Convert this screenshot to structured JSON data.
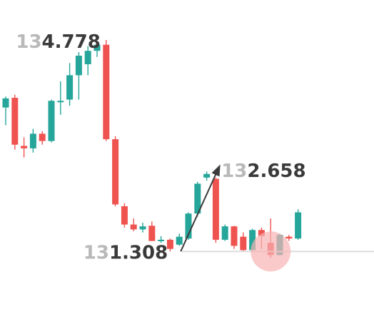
{
  "colors": {
    "bull": "#26a69a",
    "bear": "#ef5350",
    "annotation": "#3b3b3b",
    "marker": "#f8b4b4",
    "baseline": "#dcdcdc",
    "label_dim": "#b9b9b9",
    "label_strong": "#3a3a3a"
  },
  "labels": {
    "high": {
      "dim": "13",
      "strong": "4.778"
    },
    "mid": {
      "dim": "13",
      "strong": "2.658"
    },
    "low": {
      "dim": "13",
      "strong": "1.308"
    }
  },
  "chart_data": {
    "type": "candlestick",
    "ylim": [
      130.75,
      135.2
    ],
    "candles": [
      {
        "o": 133.67,
        "h": 133.85,
        "l": 133.38,
        "c": 133.82
      },
      {
        "o": 133.83,
        "h": 133.88,
        "l": 132.98,
        "c": 133.06
      },
      {
        "o": 133.04,
        "h": 133.18,
        "l": 132.85,
        "c": 133.0
      },
      {
        "o": 133.0,
        "h": 133.32,
        "l": 132.93,
        "c": 133.24
      },
      {
        "o": 133.24,
        "h": 133.28,
        "l": 133.06,
        "c": 133.12
      },
      {
        "o": 133.12,
        "h": 133.8,
        "l": 133.1,
        "c": 133.78
      },
      {
        "o": 133.78,
        "h": 134.1,
        "l": 133.55,
        "c": 133.78
      },
      {
        "o": 133.8,
        "h": 134.4,
        "l": 133.7,
        "c": 134.2
      },
      {
        "o": 134.2,
        "h": 134.58,
        "l": 133.8,
        "c": 134.52
      },
      {
        "o": 134.38,
        "h": 134.68,
        "l": 134.2,
        "c": 134.6
      },
      {
        "o": 134.6,
        "h": 134.75,
        "l": 134.5,
        "c": 134.7
      },
      {
        "o": 134.7,
        "h": 134.778,
        "l": 133.12,
        "c": 133.15
      },
      {
        "o": 133.15,
        "h": 133.2,
        "l": 132.05,
        "c": 132.08
      },
      {
        "o": 132.05,
        "h": 132.1,
        "l": 131.7,
        "c": 131.75
      },
      {
        "o": 131.75,
        "h": 131.85,
        "l": 131.64,
        "c": 131.67
      },
      {
        "o": 131.67,
        "h": 131.78,
        "l": 131.62,
        "c": 131.72
      },
      {
        "o": 131.73,
        "h": 131.8,
        "l": 131.48,
        "c": 131.48
      },
      {
        "o": 131.48,
        "h": 131.56,
        "l": 131.45,
        "c": 131.5
      },
      {
        "o": 131.5,
        "h": 131.52,
        "l": 131.308,
        "c": 131.35
      },
      {
        "o": 131.42,
        "h": 131.6,
        "l": 131.4,
        "c": 131.55
      },
      {
        "o": 131.52,
        "h": 131.95,
        "l": 131.5,
        "c": 131.93
      },
      {
        "o": 131.93,
        "h": 132.45,
        "l": 131.88,
        "c": 132.42
      },
      {
        "o": 132.52,
        "h": 132.62,
        "l": 132.47,
        "c": 132.58
      },
      {
        "o": 132.5,
        "h": 132.52,
        "l": 131.45,
        "c": 131.5
      },
      {
        "o": 131.5,
        "h": 131.75,
        "l": 131.48,
        "c": 131.72
      },
      {
        "o": 131.72,
        "h": 131.73,
        "l": 131.35,
        "c": 131.4
      },
      {
        "o": 131.55,
        "h": 131.62,
        "l": 131.3,
        "c": 131.33
      },
      {
        "o": 131.33,
        "h": 131.68,
        "l": 131.32,
        "c": 131.66
      },
      {
        "o": 131.66,
        "h": 131.7,
        "l": 131.35,
        "c": 131.56
      },
      {
        "o": 131.45,
        "h": 131.85,
        "l": 131.2,
        "c": 131.25
      },
      {
        "o": 131.25,
        "h": 131.6,
        "l": 131.24,
        "c": 131.58
      },
      {
        "o": 131.55,
        "h": 131.58,
        "l": 131.48,
        "c": 131.52
      },
      {
        "o": 131.52,
        "h": 132.0,
        "l": 131.5,
        "c": 131.95
      }
    ],
    "reference_line": 131.308,
    "arrow": {
      "from_candle": 19,
      "from_price": 131.308,
      "to_candle": 23,
      "to_price": 132.658
    },
    "price_labels": [
      {
        "key": "high",
        "value": 134.778,
        "candle": 6,
        "anchor": "end"
      },
      {
        "key": "mid",
        "value": 132.658,
        "candle": 24,
        "anchor": "start"
      },
      {
        "key": "low",
        "value": 131.308,
        "candle": 19,
        "anchor": "end"
      }
    ],
    "marker_candle": 29,
    "marker_price": 131.308
  }
}
